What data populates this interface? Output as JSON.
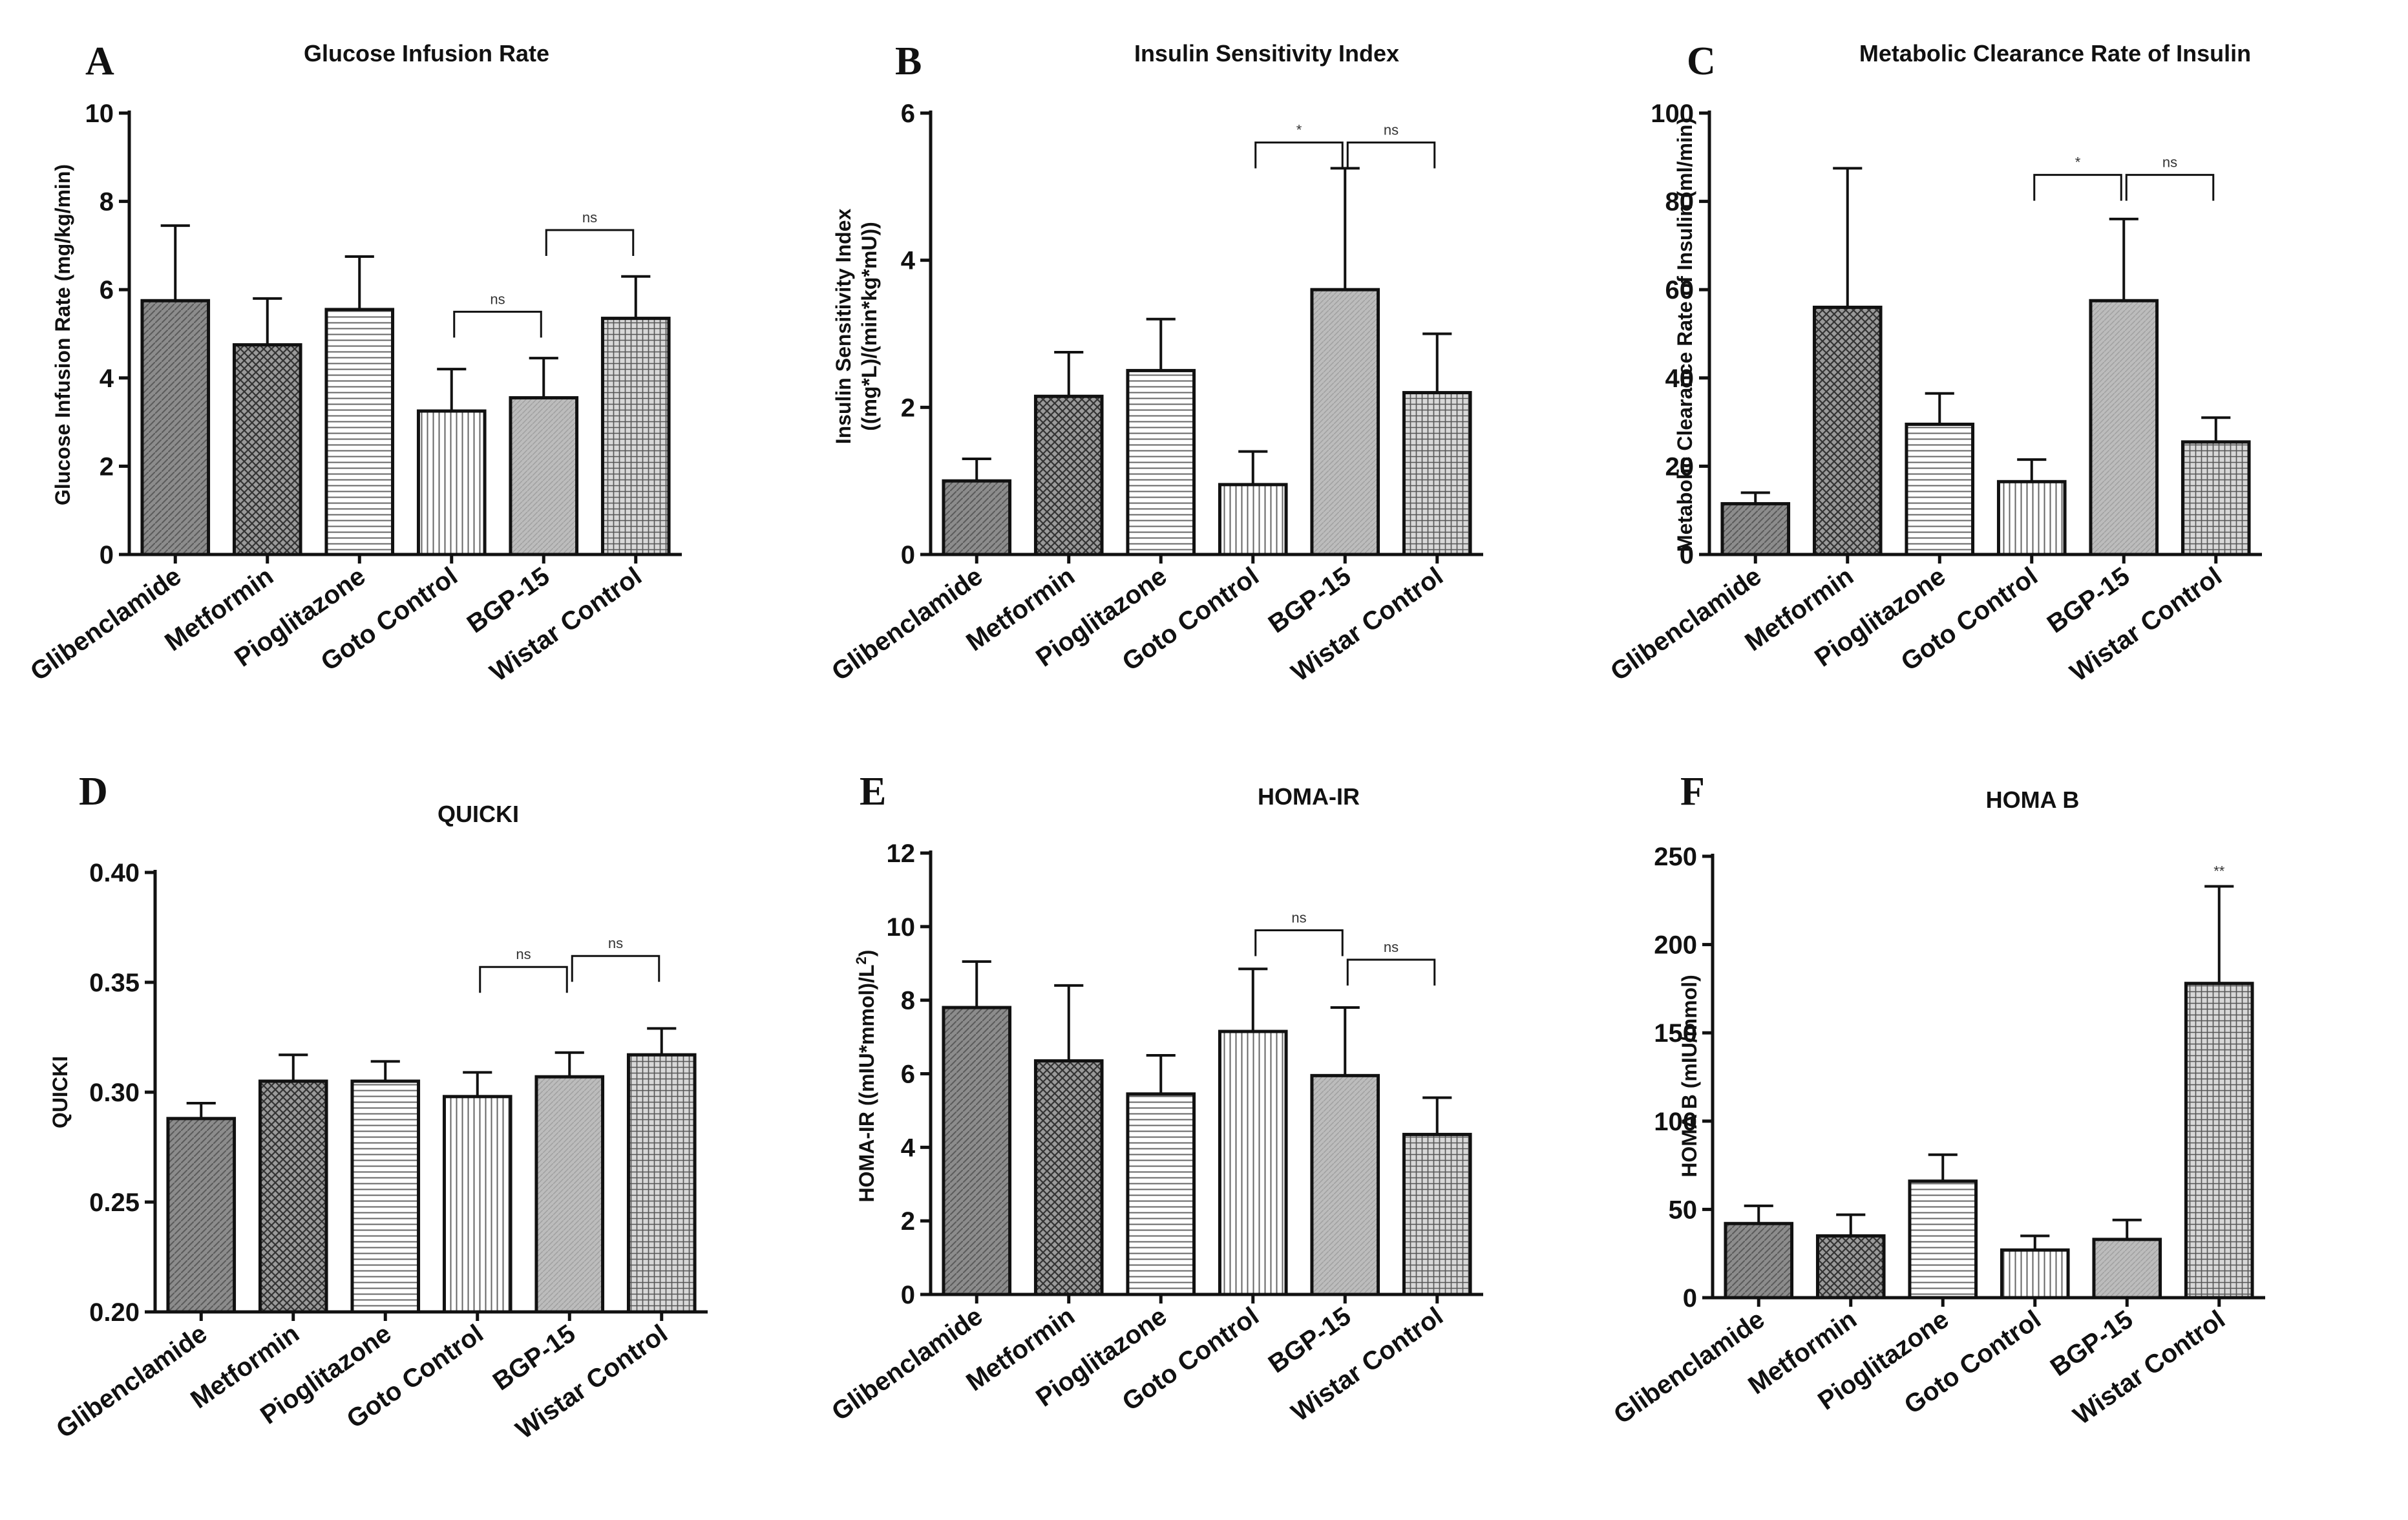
{
  "colors": {
    "glibenclamide": "#8c8c8c",
    "metformin": "#7a7a7a",
    "pioglitazone": "#ffffff",
    "goto_control": "#ffffff",
    "bgp15": "#b8b8b8",
    "wistar_control": "#d0d0d0",
    "ink": "#111111"
  },
  "chart_data": [
    {
      "panel": "A",
      "type": "bar",
      "title": "Glucose Infusion Rate",
      "ylabel": "Glucose Infusion Rate (mg/kg/min)",
      "categories": [
        "Glibenclamide",
        "Metformin",
        "Pioglitazone",
        "Goto Control",
        "BGP-15",
        "Wistar Control"
      ],
      "patterns": [
        "dark",
        "check",
        "hstripe",
        "vstripe",
        "light",
        "grid"
      ],
      "values": [
        5.75,
        4.75,
        5.55,
        3.25,
        3.55,
        5.35
      ],
      "errors": [
        1.7,
        1.05,
        1.2,
        0.95,
        0.9,
        0.95
      ],
      "ylim": [
        0,
        10
      ],
      "yticks": [
        "0",
        "2",
        "4",
        "6",
        "8",
        "10"
      ],
      "ytick_values": [
        0,
        2,
        4,
        6,
        8,
        10
      ],
      "comparisons": [
        {
          "from": 3,
          "to": 4,
          "label": "ns",
          "y": 5.5
        },
        {
          "from": 4,
          "to": 5,
          "label": "ns",
          "y": 7.35
        }
      ]
    },
    {
      "panel": "B",
      "type": "bar",
      "title": "Insulin Sensitivity Index",
      "ylabel_lines": [
        "Insulin Sensitivity Index",
        "((mg*L)/(min*kg*mU))"
      ],
      "categories": [
        "Glibenclamide",
        "Metformin",
        "Pioglitazone",
        "Goto Control",
        "BGP-15",
        "Wistar Control"
      ],
      "patterns": [
        "dark",
        "check",
        "hstripe",
        "vstripe",
        "light",
        "grid"
      ],
      "values": [
        1.0,
        2.15,
        2.5,
        0.95,
        3.6,
        2.2
      ],
      "errors": [
        0.3,
        0.6,
        0.7,
        0.45,
        1.65,
        0.8
      ],
      "ylim": [
        0,
        6
      ],
      "yticks": [
        "0",
        "2",
        "4",
        "6"
      ],
      "ytick_values": [
        0,
        2,
        4,
        6
      ],
      "comparisons": [
        {
          "from": 3,
          "to": 4,
          "label": "*",
          "y": 5.6
        },
        {
          "from": 4,
          "to": 5,
          "label": "ns",
          "y": 5.6
        }
      ]
    },
    {
      "panel": "C",
      "type": "bar",
      "title": "Metabolic Clearance Rate of Insulin",
      "ylabel": "Metabolic Clearance Rate of Insulin (ml/min)",
      "categories": [
        "Glibenclamide",
        "Metformin",
        "Pioglitazone",
        "Goto Control",
        "BGP-15",
        "Wistar Control"
      ],
      "patterns": [
        "dark",
        "check",
        "hstripe",
        "vstripe",
        "light",
        "grid"
      ],
      "values": [
        11.5,
        56,
        29.5,
        16.5,
        57.5,
        25.5
      ],
      "errors": [
        2.5,
        31.5,
        7,
        5,
        18.5,
        5.5
      ],
      "ylim": [
        0,
        100
      ],
      "yticks": [
        "0",
        "20",
        "40",
        "60",
        "80",
        "100"
      ],
      "ytick_values": [
        0,
        20,
        40,
        60,
        80,
        100
      ],
      "comparisons": [
        {
          "from": 3,
          "to": 4,
          "label": "*",
          "y": 86
        },
        {
          "from": 4,
          "to": 5,
          "label": "ns",
          "y": 86
        }
      ]
    },
    {
      "panel": "D",
      "type": "bar",
      "title": "QUICKI",
      "ylabel": "QUICKI",
      "categories": [
        "Glibenclamide",
        "Metformin",
        "Pioglitazone",
        "Goto Control",
        "BGP-15",
        "Wistar Control"
      ],
      "patterns": [
        "dark",
        "check",
        "hstripe",
        "vstripe",
        "light",
        "grid"
      ],
      "values": [
        0.288,
        0.305,
        0.305,
        0.298,
        0.307,
        0.317
      ],
      "errors": [
        0.007,
        0.012,
        0.009,
        0.011,
        0.011,
        0.012
      ],
      "ylim": [
        0.2,
        0.4
      ],
      "yticks": [
        "0.20",
        "0.25",
        "0.30",
        "0.35",
        "0.40"
      ],
      "ytick_values": [
        0.2,
        0.25,
        0.3,
        0.35,
        0.4
      ],
      "comparisons": [
        {
          "from": 3,
          "to": 4,
          "label": "ns",
          "y": 0.357
        },
        {
          "from": 4,
          "to": 5,
          "label": "ns",
          "y": 0.362
        }
      ]
    },
    {
      "panel": "E",
      "type": "bar",
      "title": "HOMA-IR",
      "ylabel": "HOMA-IR ((mIU*mmol)/L",
      "ylabel_sup": "2",
      "ylabel_end": ")",
      "categories": [
        "Glibenclamide",
        "Metformin",
        "Pioglitazone",
        "Goto Control",
        "BGP-15",
        "Wistar Control"
      ],
      "patterns": [
        "dark",
        "check",
        "hstripe",
        "vstripe",
        "light",
        "grid"
      ],
      "values": [
        7.8,
        6.35,
        5.45,
        7.15,
        5.95,
        4.35
      ],
      "errors": [
        1.25,
        2.05,
        1.05,
        1.7,
        1.85,
        1.0
      ],
      "ylim": [
        0,
        12
      ],
      "yticks": [
        "0",
        "2",
        "4",
        "6",
        "8",
        "10",
        "12"
      ],
      "ytick_values": [
        0,
        2,
        4,
        6,
        8,
        10,
        12
      ],
      "comparisons": [
        {
          "from": 3,
          "to": 4,
          "label": "ns",
          "y": 9.9
        },
        {
          "from": 4,
          "to": 5,
          "label": "ns",
          "y": 9.1
        }
      ]
    },
    {
      "panel": "F",
      "type": "bar",
      "title": "HOMA B",
      "ylabel": "HOMA B (mIU/mmol)",
      "categories": [
        "Glibenclamide",
        "Metformin",
        "Pioglitazone",
        "Goto Control",
        "BGP-15",
        "Wistar Control"
      ],
      "patterns": [
        "dark",
        "check",
        "hstripe",
        "vstripe",
        "light",
        "grid"
      ],
      "values": [
        42,
        35,
        66,
        27,
        33,
        178
      ],
      "errors": [
        10,
        12,
        15,
        8,
        11,
        55
      ],
      "ylim": [
        0,
        250
      ],
      "yticks": [
        "0",
        "50",
        "100",
        "150",
        "200",
        "250"
      ],
      "ytick_values": [
        0,
        50,
        100,
        150,
        200,
        250
      ],
      "star_labels": [
        {
          "index": 5,
          "label": "**"
        }
      ]
    }
  ]
}
